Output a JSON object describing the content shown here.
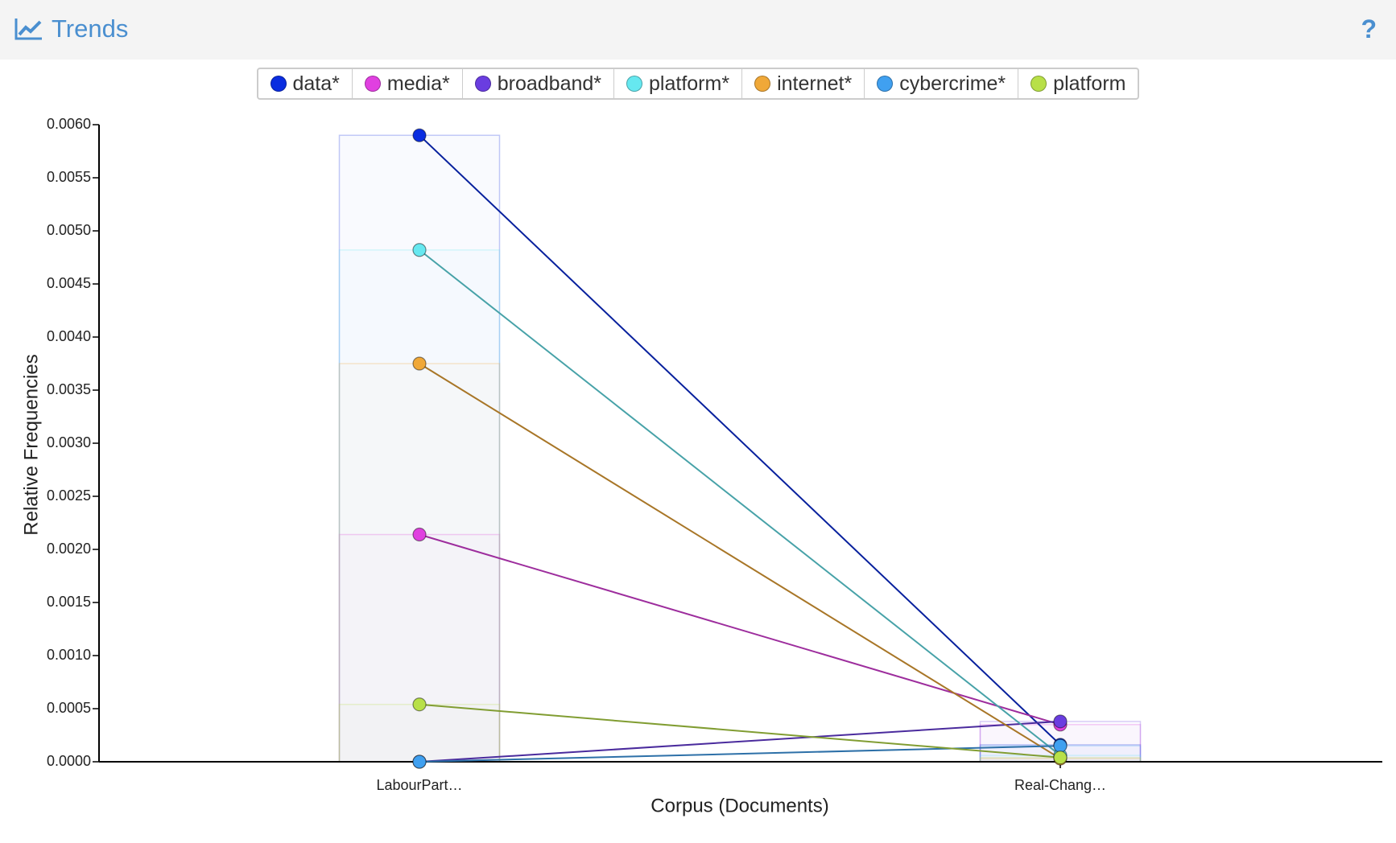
{
  "header": {
    "title": "Trends",
    "help": "?"
  },
  "chart_data": {
    "type": "line",
    "categories": [
      "LabourPart…",
      "Real-Chang…"
    ],
    "xlabel": "Corpus (Documents)",
    "ylabel": "Relative Frequencies",
    "ylim": [
      0,
      0.006
    ],
    "yticks": [
      {
        "value": 0,
        "label": "0.0000"
      },
      {
        "value": 0.0005,
        "label": "0.0005"
      },
      {
        "value": 0.001,
        "label": "0.0010"
      },
      {
        "value": 0.0015,
        "label": "0.0015"
      },
      {
        "value": 0.002,
        "label": "0.0020"
      },
      {
        "value": 0.0025,
        "label": "0.0025"
      },
      {
        "value": 0.003,
        "label": "0.0030"
      },
      {
        "value": 0.0035,
        "label": "0.0035"
      },
      {
        "value": 0.004,
        "label": "0.0040"
      },
      {
        "value": 0.0045,
        "label": "0.0045"
      },
      {
        "value": 0.005,
        "label": "0.0050"
      },
      {
        "value": 0.0055,
        "label": "0.0055"
      },
      {
        "value": 0.006,
        "label": "0.0060"
      }
    ],
    "series": [
      {
        "name": "data*",
        "color": "#0a2de0",
        "values": [
          0.0059,
          0.00016
        ]
      },
      {
        "name": "media*",
        "color": "#e040e0",
        "values": [
          0.00214,
          0.00035
        ]
      },
      {
        "name": "broadband*",
        "color": "#6a3de0",
        "values": [
          0.0,
          0.00038
        ]
      },
      {
        "name": "platform*",
        "color": "#66e8f0",
        "values": [
          0.00482,
          6e-05
        ]
      },
      {
        "name": "internet*",
        "color": "#f0a838",
        "values": [
          0.00375,
          3e-05
        ]
      },
      {
        "name": "cybercrime*",
        "color": "#40a0f0",
        "values": [
          0.0,
          0.00015
        ]
      },
      {
        "name": "platform",
        "color": "#b8e048",
        "values": [
          0.00054,
          4e-05
        ]
      }
    ]
  }
}
